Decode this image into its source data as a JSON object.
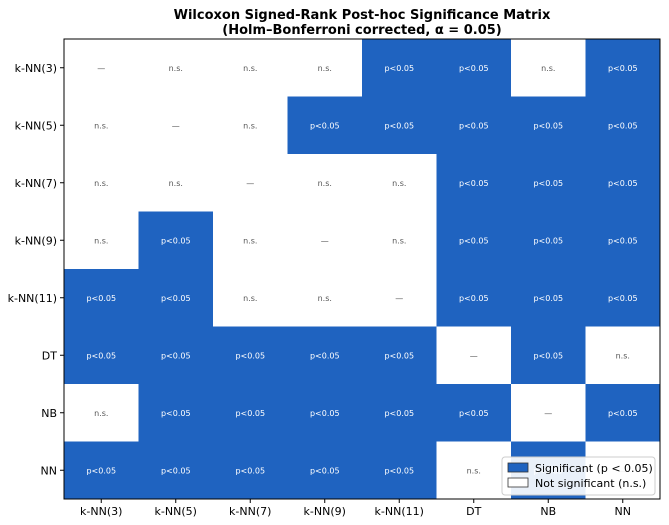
{
  "chart_data": {
    "type": "heatmap",
    "title": "Wilcoxon Signed-Rank Post-hoc Significance Matrix",
    "subtitle": "(Holm–Bonferroni corrected, α = 0.05)",
    "row_labels": [
      "k-NN(3)",
      "k-NN(5)",
      "k-NN(7)",
      "k-NN(9)",
      "k-NN(11)",
      "DT",
      "NB",
      "NN"
    ],
    "col_labels": [
      "k-NN(3)",
      "k-NN(5)",
      "k-NN(7)",
      "k-NN(9)",
      "k-NN(11)",
      "DT",
      "NB",
      "NN"
    ],
    "matrix": [
      [
        "—",
        "n.s.",
        "n.s.",
        "n.s.",
        "p<0.05",
        "p<0.05",
        "n.s.",
        "p<0.05"
      ],
      [
        "n.s.",
        "—",
        "n.s.",
        "p<0.05",
        "p<0.05",
        "p<0.05",
        "p<0.05",
        "p<0.05"
      ],
      [
        "n.s.",
        "n.s.",
        "—",
        "n.s.",
        "n.s.",
        "p<0.05",
        "p<0.05",
        "p<0.05"
      ],
      [
        "n.s.",
        "p<0.05",
        "n.s.",
        "—",
        "n.s.",
        "p<0.05",
        "p<0.05",
        "p<0.05"
      ],
      [
        "p<0.05",
        "p<0.05",
        "n.s.",
        "n.s.",
        "—",
        "p<0.05",
        "p<0.05",
        "p<0.05"
      ],
      [
        "p<0.05",
        "p<0.05",
        "p<0.05",
        "p<0.05",
        "p<0.05",
        "—",
        "p<0.05",
        "n.s."
      ],
      [
        "n.s.",
        "p<0.05",
        "p<0.05",
        "p<0.05",
        "p<0.05",
        "p<0.05",
        "—",
        "p<0.05"
      ],
      [
        "p<0.05",
        "p<0.05",
        "p<0.05",
        "p<0.05",
        "p<0.05",
        "n.s.",
        "p<0.05",
        "—"
      ]
    ],
    "legend": [
      {
        "label": "Significant (p < 0.05)",
        "color": "#1f63c0"
      },
      {
        "label": "Not significant (n.s.)",
        "color": "#ffffff"
      }
    ],
    "legend_position": "lower-right",
    "colors": {
      "significant": "#1f63c0",
      "not_significant": "#ffffff",
      "significant_text": "#ffffff",
      "not_significant_text": "#555555"
    }
  }
}
